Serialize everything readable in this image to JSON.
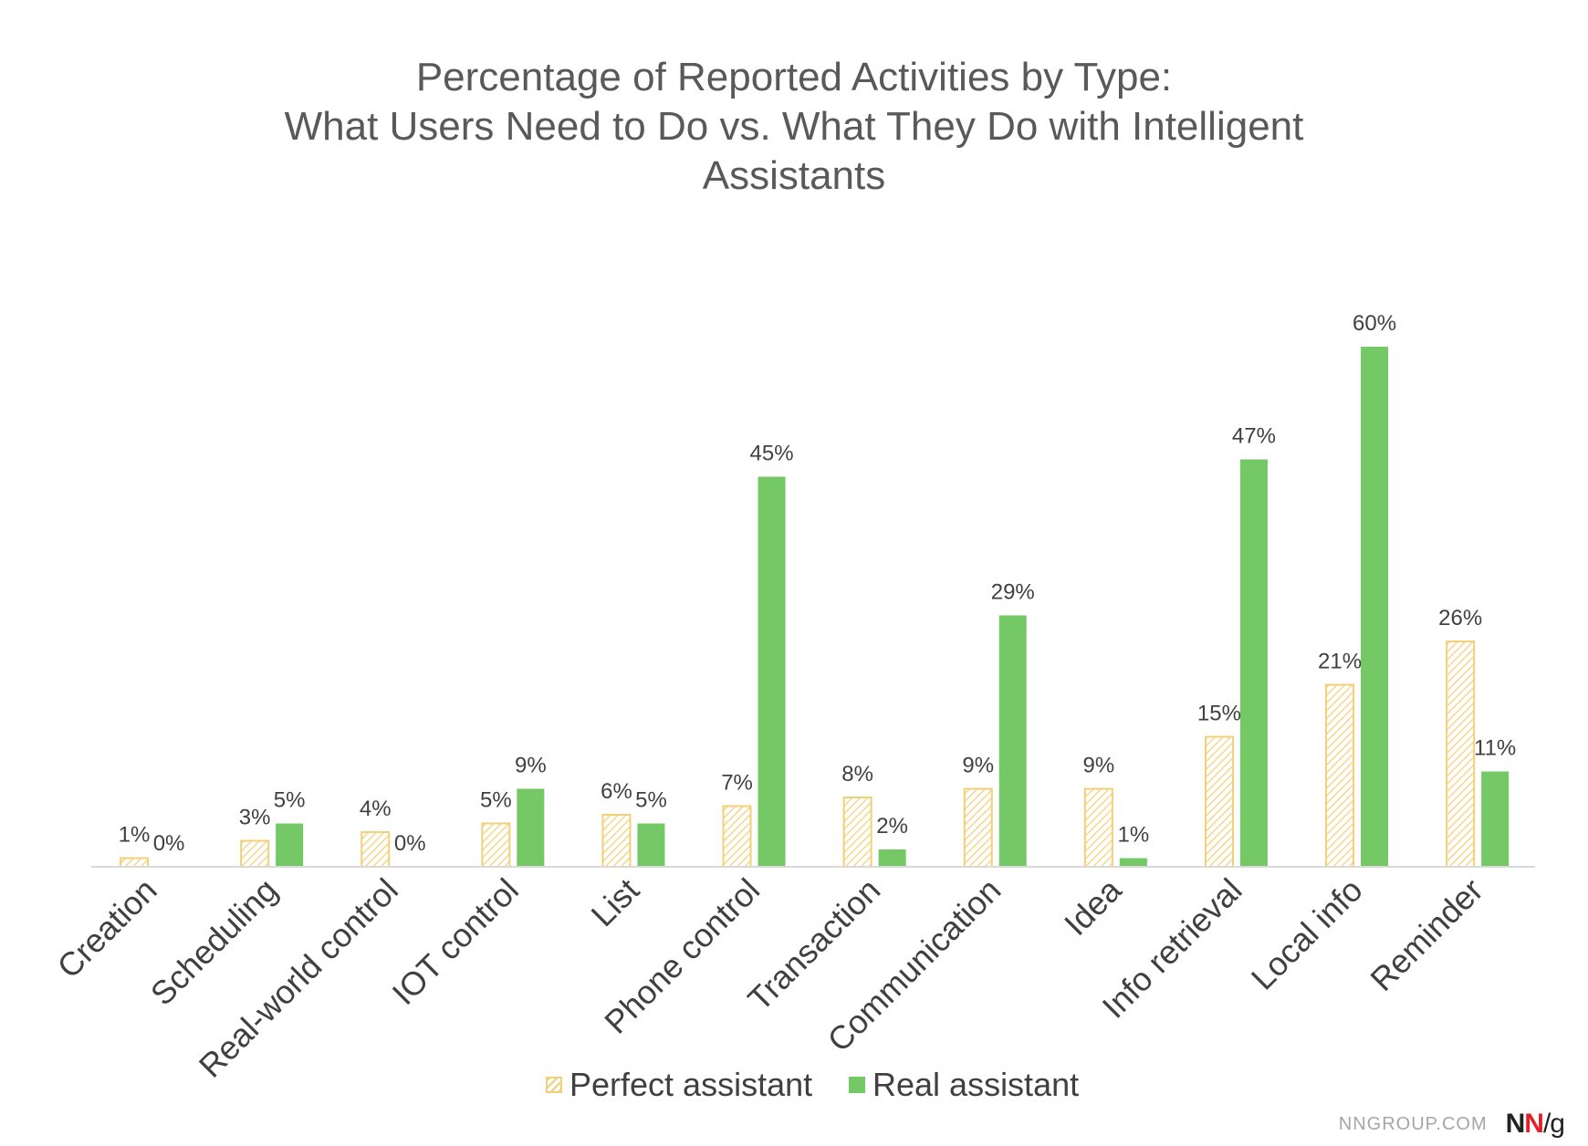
{
  "title_lines": [
    "Percentage of Reported Activities by Type:",
    "What Users Need to Do vs. What They Do with Intelligent",
    "Assistants"
  ],
  "legend": {
    "perfect_label": "Perfect assistant",
    "real_label": "Real assistant"
  },
  "watermark": {
    "site": "NNGROUP.COM",
    "logo_part1": "N",
    "logo_part2": "N",
    "logo_part3": "/g"
  },
  "colors": {
    "perfect": "#f2d077",
    "real": "#74c865",
    "axis": "#d9d9d9",
    "text": "#404040"
  },
  "chart_data": {
    "type": "bar",
    "title": "Percentage of Reported Activities by Type: What Users Need to Do vs. What They Do with Intelligent Assistants",
    "xlabel": "",
    "ylabel": "",
    "categories": [
      "Creation",
      "Scheduling",
      "Real-world control",
      "IOT control",
      "List",
      "Phone control",
      "Transaction",
      "Communication",
      "Idea",
      "Info retrieval",
      "Local info",
      "Reminder"
    ],
    "series": [
      {
        "name": "Perfect assistant",
        "values": [
          1,
          3,
          4,
          5,
          6,
          7,
          8,
          9,
          9,
          15,
          21,
          26
        ],
        "labels": [
          "1%",
          "3%",
          "4%",
          "5%",
          "6%",
          "7%",
          "8%",
          "9%",
          "9%",
          "15%",
          "21%",
          "26%"
        ],
        "style": "hatched"
      },
      {
        "name": "Real assistant",
        "values": [
          0,
          5,
          0,
          9,
          5,
          45,
          2,
          29,
          1,
          47,
          60,
          11
        ],
        "labels": [
          "0%",
          "5%",
          "0%",
          "9%",
          "5%",
          "45%",
          "2%",
          "29%",
          "1%",
          "47%",
          "60%",
          "11%"
        ],
        "style": "solid"
      }
    ],
    "ylim": [
      0,
      60
    ],
    "grid": false,
    "legend_position": "bottom"
  }
}
